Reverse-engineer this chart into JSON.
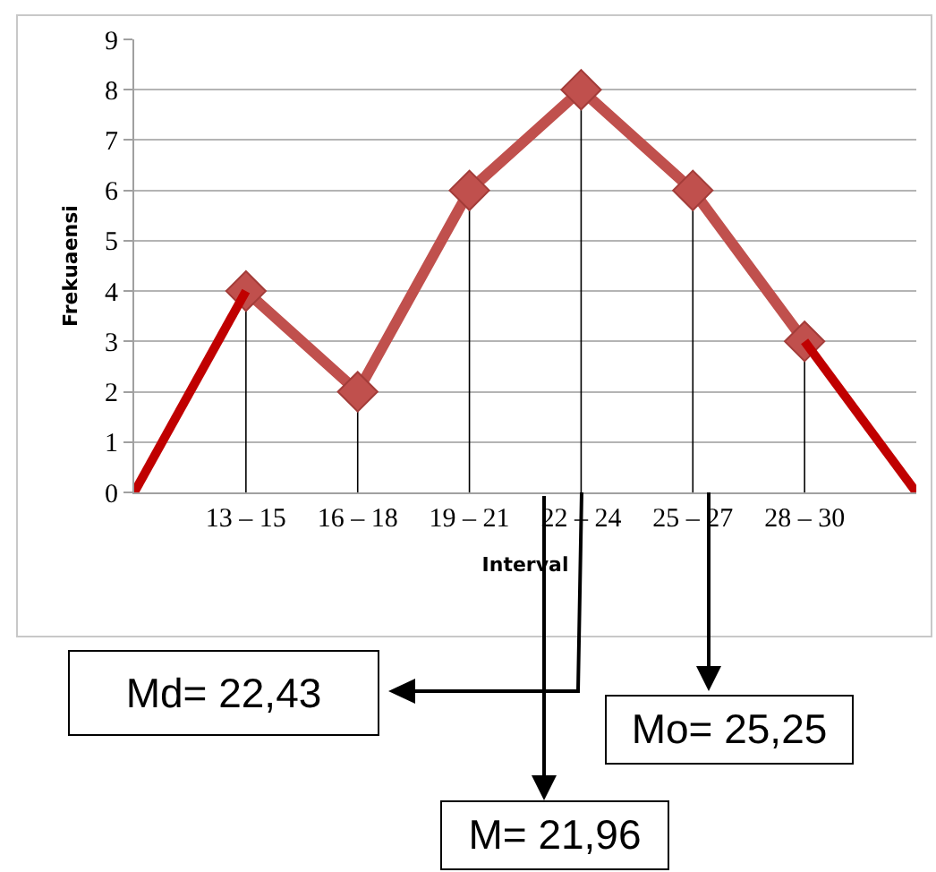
{
  "chart_data": {
    "type": "line",
    "xlabel": "Interval",
    "ylabel": "Frekuaensi",
    "categories": [
      null,
      "13 – 15",
      "16 – 18",
      "19 – 21",
      "22 – 24",
      "25 – 27",
      "28 – 30",
      null
    ],
    "series": [
      {
        "color": "#c0504d",
        "values": [
          null,
          4,
          2,
          6,
          8,
          6,
          3,
          null
        ],
        "errors": [
          null,
          [
            0,
            4
          ],
          [
            0,
            2
          ],
          [
            0,
            6
          ],
          [
            0,
            8
          ],
          [
            0,
            6
          ],
          [
            0,
            3
          ],
          null
        ]
      },
      {
        "color": "#c00000",
        "marker": "none",
        "values": [
          0,
          4,
          null,
          null,
          null,
          null,
          3,
          0
        ]
      }
    ],
    "ylim": [
      0,
      9
    ],
    "yticks": [
      0,
      1,
      2,
      3,
      4,
      5,
      6,
      7,
      8,
      9
    ],
    "grid": "y",
    "marker": "diamond",
    "line_style": "solid",
    "annotations": [
      "Md= 22,43",
      "Mo= 25,25",
      "M= 21,96"
    ]
  }
}
